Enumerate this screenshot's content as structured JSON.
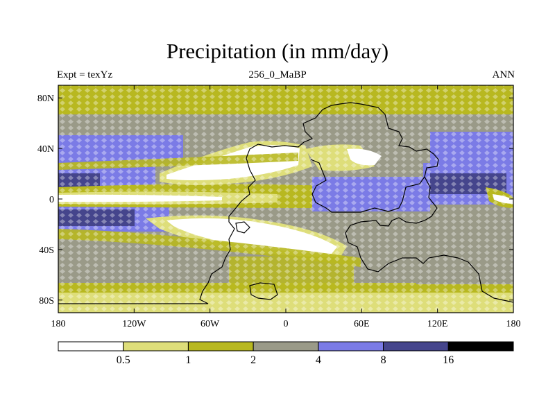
{
  "title": "Precipitation (in mm/day)",
  "subtitle_left": "Expt = texYz",
  "subtitle_center": "256_0_MaBP",
  "subtitle_right": "ANN",
  "axes": {
    "x_ticks": [
      {
        "value": -180,
        "label": "180"
      },
      {
        "value": -120,
        "label": "120W"
      },
      {
        "value": -60,
        "label": "60W"
      },
      {
        "value": 0,
        "label": "0"
      },
      {
        "value": 60,
        "label": "60E"
      },
      {
        "value": 120,
        "label": "120E"
      },
      {
        "value": 180,
        "label": "180"
      }
    ],
    "y_ticks": [
      {
        "value": 80,
        "label": "80N"
      },
      {
        "value": 40,
        "label": "40N"
      },
      {
        "value": 0,
        "label": "0"
      },
      {
        "value": -40,
        "label": "40S"
      },
      {
        "value": -80,
        "label": "80S"
      }
    ],
    "lon_range": [
      -180,
      180
    ],
    "lat_range": [
      -90,
      90
    ]
  },
  "colorbar": {
    "colors": [
      "#ffffff",
      "#dede7a",
      "#b8b820",
      "#9a9a88",
      "#7b7be6",
      "#45458c",
      "#000000"
    ],
    "labels": [
      "0.5",
      "1",
      "2",
      "4",
      "8",
      "16"
    ]
  }
}
